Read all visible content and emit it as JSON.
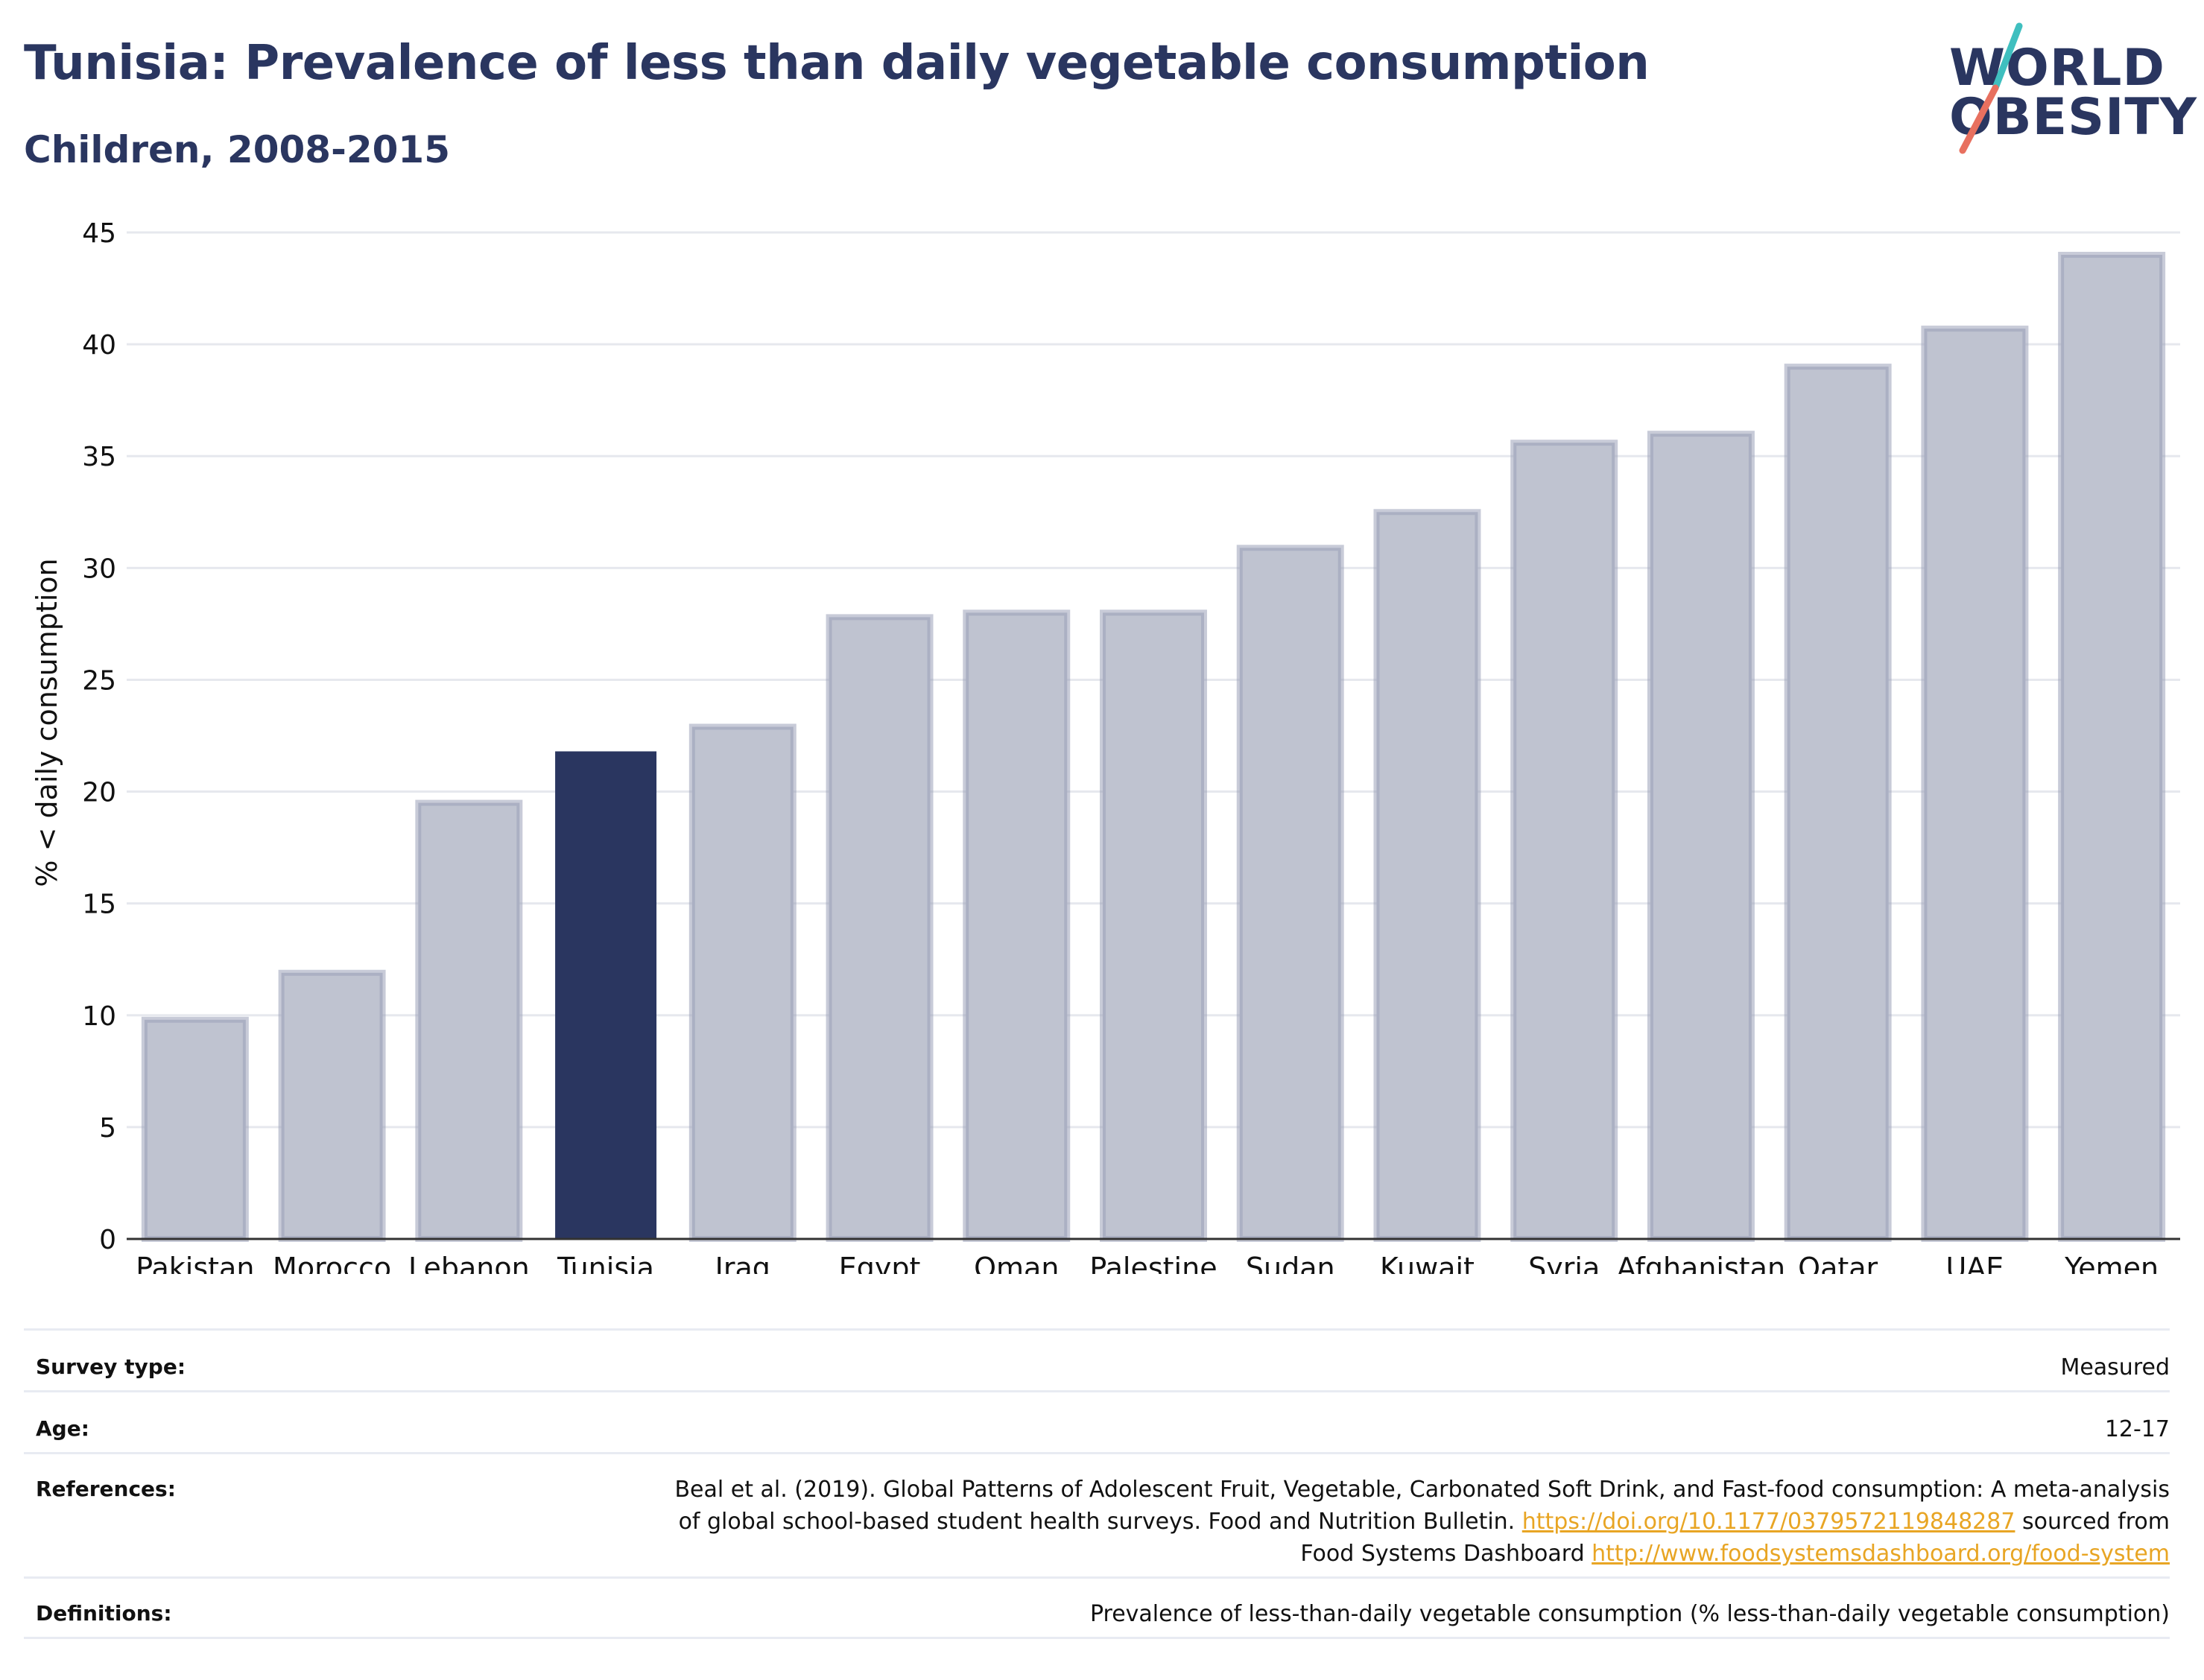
{
  "header": {
    "title": "Tunisia: Prevalence of less than daily vegetable consumption",
    "subtitle": "Children, 2008-2015"
  },
  "logo": {
    "line1": "WORLD",
    "line2": "OBESITY",
    "colors": {
      "text": "#2a3660",
      "slash_top": "#3fbfbf",
      "slash_bottom": "#e8705f"
    }
  },
  "chart_data": {
    "type": "bar",
    "categories": [
      "Pakistan",
      "Morocco",
      "Lebanon",
      "Tunisia",
      "Iraq",
      "Egypt",
      "Oman",
      "Palestine",
      "Sudan",
      "Kuwait",
      "Syria",
      "Afghanistan",
      "Qatar",
      "UAE",
      "Yemen"
    ],
    "values": [
      9.8,
      11.9,
      19.5,
      21.8,
      22.9,
      27.8,
      28.0,
      28.0,
      30.9,
      32.5,
      35.6,
      36.0,
      39.0,
      40.7,
      44.0
    ],
    "highlight": "Tunisia",
    "ylabel": "% < daily consumption",
    "ylim": [
      0,
      45
    ],
    "yticks": [
      0,
      5,
      10,
      15,
      20,
      25,
      30,
      35,
      40,
      45
    ],
    "grid": true,
    "colors": {
      "bar": "#bfc3d0",
      "bar_outline": "#9aa0b8",
      "highlight": "#2a3660"
    }
  },
  "meta": {
    "survey_type": {
      "label": "Survey type:",
      "value": "Measured"
    },
    "age": {
      "label": "Age:",
      "value": "12-17"
    },
    "references": {
      "label": "References:",
      "line1": "Beal et al. (2019). Global Patterns of Adolescent Fruit, Vegetable, Carbonated Soft Drink, and Fast-food consumption: A meta-analysis",
      "line2_prefix": "of global school-based student health surveys. Food and Nutrition Bulletin. ",
      "doi": "https://doi.org/10.1177/0379572119848287",
      "line2_suffix": " sourced from",
      "line3_prefix": "Food Systems Dashboard ",
      "dashboard": "http://www.foodsystemsdashboard.org/food-system"
    },
    "definitions": {
      "label": "Definitions:",
      "value": "Prevalence of less-than-daily vegetable consumption (% less-than-daily vegetable consumption)"
    }
  }
}
